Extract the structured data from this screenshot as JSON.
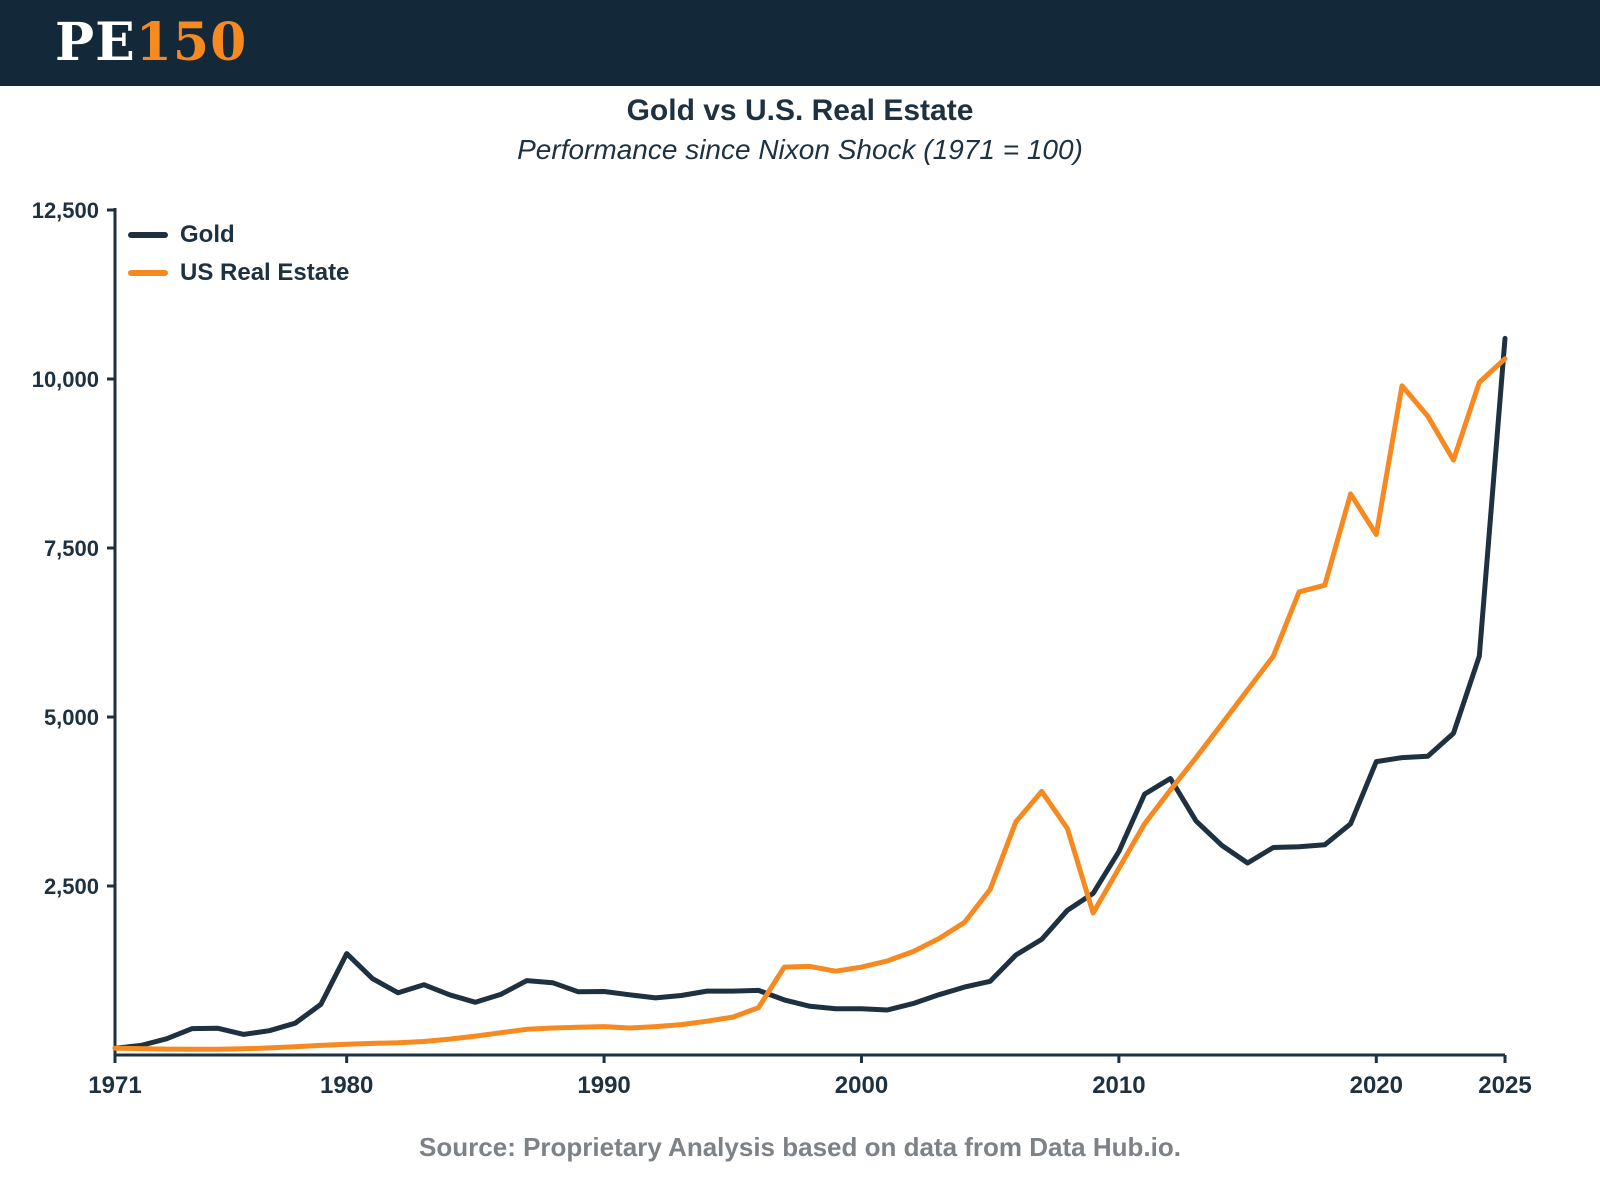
{
  "header": {
    "logo_pe": "PE",
    "logo_150": "150"
  },
  "title": "Gold vs U.S. Real Estate",
  "subtitle": "Performance since Nixon Shock (1971 = 100)",
  "source": "Source: Proprietary Analysis based on data from Data Hub.io.",
  "colors": {
    "navy": "#1d3140",
    "orange": "#f6891f",
    "header_bg": "#132838",
    "source_gray": "#7d8287"
  },
  "chart_data": {
    "type": "line",
    "title": "Gold vs U.S. Real Estate",
    "subtitle": "Performance since Nixon Shock (1971 = 100)",
    "xlabel": "",
    "ylabel": "",
    "grid": false,
    "legend_position": "top-left",
    "ylim": [
      0,
      12500
    ],
    "yticks": [
      2500,
      5000,
      7500,
      10000,
      12500
    ],
    "ytick_labels": [
      "2,500",
      "5,000",
      "7,500",
      "10,000",
      "12,500"
    ],
    "xticks": [
      1971,
      1980,
      1990,
      2000,
      2010,
      2020,
      2025
    ],
    "x": [
      1971,
      1972,
      1973,
      1974,
      1975,
      1976,
      1977,
      1978,
      1979,
      1980,
      1981,
      1982,
      1983,
      1984,
      1985,
      1986,
      1987,
      1988,
      1989,
      1990,
      1991,
      1992,
      1993,
      1994,
      1995,
      1996,
      1997,
      1998,
      1999,
      2000,
      2001,
      2002,
      2003,
      2004,
      2005,
      2006,
      2007,
      2008,
      2009,
      2010,
      2011,
      2012,
      2013,
      2014,
      2015,
      2016,
      2017,
      2018,
      2019,
      2020,
      2021,
      2022,
      2023,
      2024,
      2025
    ],
    "series": [
      {
        "name": "Gold",
        "color": "#1d3140",
        "values": [
          100,
          140,
          240,
          390,
          395,
          305,
          360,
          470,
          750,
          1500,
          1130,
          920,
          1040,
          890,
          780,
          900,
          1100,
          1070,
          935,
          940,
          890,
          845,
          880,
          945,
          945,
          955,
          815,
          720,
          685,
          685,
          665,
          760,
          890,
          1005,
          1090,
          1480,
          1710,
          2140,
          2390,
          3010,
          3860,
          4090,
          3460,
          3100,
          2840,
          3070,
          3080,
          3110,
          3420,
          4340,
          4400,
          4420,
          4760,
          5900,
          10600
        ]
      },
      {
        "name": "US Real Estate",
        "color": "#f6891f",
        "values": [
          100,
          95,
          88,
          84,
          86,
          92,
          105,
          122,
          142,
          160,
          172,
          180,
          200,
          235,
          280,
          330,
          380,
          400,
          410,
          420,
          400,
          420,
          450,
          500,
          560,
          700,
          1300,
          1310,
          1240,
          1300,
          1390,
          1530,
          1720,
          1960,
          2450,
          3450,
          3900,
          3350,
          2100,
          2760,
          3420,
          3920,
          4400,
          4900,
          5400,
          5900,
          6850,
          6950,
          8300,
          7700,
          9900,
          9450,
          8800,
          9950,
          10300
        ]
      }
    ]
  }
}
